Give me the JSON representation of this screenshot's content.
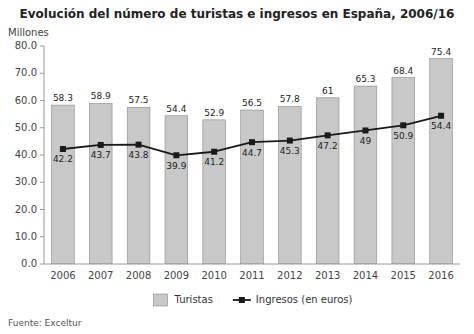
{
  "chart_data": {
    "type": "bar",
    "title": "Evolución del número de turistas e ingresos en España, 2006/16",
    "ylabel": "Millones",
    "source": "Fuente: Exceltur",
    "categories": [
      "2006",
      "2007",
      "2008",
      "2009",
      "2010",
      "2011",
      "2012",
      "2013",
      "2014",
      "2015",
      "2016"
    ],
    "series": [
      {
        "name": "Turistas",
        "type": "bar",
        "color": "#c8c8c8",
        "values": [
          58.3,
          58.9,
          57.5,
          54.4,
          52.9,
          56.5,
          57.8,
          61.0,
          65.3,
          68.4,
          75.4
        ]
      },
      {
        "name": "Ingresos (en euros)",
        "type": "line",
        "color": "#1a1a1a",
        "marker": "square",
        "values": [
          42.2,
          43.7,
          43.8,
          39.9,
          41.2,
          44.7,
          45.3,
          47.2,
          49.0,
          50.9,
          54.4
        ]
      }
    ],
    "ylim": [
      0,
      80
    ],
    "yticks": [
      {
        "value": 0,
        "label": "0.0"
      },
      {
        "value": 10,
        "label": "10.0"
      },
      {
        "value": 20,
        "label": "20.0"
      },
      {
        "value": 30,
        "label": "30.0"
      },
      {
        "value": 40,
        "label": "40.0"
      },
      {
        "value": 50,
        "label": "50.0"
      },
      {
        "value": 60,
        "label": "60.0"
      },
      {
        "value": 70,
        "label": "70.0"
      },
      {
        "value": 80,
        "label": "80.0"
      }
    ],
    "grid": false,
    "legend": "bottom",
    "data_labels": true
  }
}
